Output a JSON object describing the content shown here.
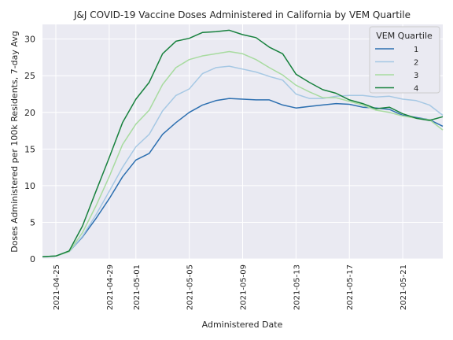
{
  "chart_data": {
    "type": "line",
    "title": "J&J COVID-19 Vaccine Doses Administered in California by VEM Quartile",
    "xlabel": "Administered Date",
    "ylabel": "Doses Administered per 100k Residents, 7-day Avg",
    "x_start": "2021-04-24",
    "x_end": "2021-05-24",
    "xlim": [
      "2021-04-24",
      "2021-05-24"
    ],
    "ylim": [
      0,
      32
    ],
    "x_ticks": [
      "2021-04-25",
      "2021-04-29",
      "2021-05-01",
      "2021-05-05",
      "2021-05-09",
      "2021-05-13",
      "2021-05-17",
      "2021-05-21"
    ],
    "y_ticks": [
      0,
      5,
      10,
      15,
      20,
      25,
      30
    ],
    "grid": true,
    "legend_title": "VEM Quartile",
    "legend_position": "top-right",
    "series": [
      {
        "name": "1",
        "color": "#2c6fb0",
        "x": [
          "2021-04-24",
          "2021-04-25",
          "2021-04-26",
          "2021-04-27",
          "2021-04-28",
          "2021-04-29",
          "2021-04-30",
          "2021-05-01",
          "2021-05-02",
          "2021-05-03",
          "2021-05-04",
          "2021-05-05",
          "2021-05-06",
          "2021-05-07",
          "2021-05-08",
          "2021-05-09",
          "2021-05-10",
          "2021-05-11",
          "2021-05-12",
          "2021-05-13",
          "2021-05-14",
          "2021-05-15",
          "2021-05-16",
          "2021-05-17",
          "2021-05-18",
          "2021-05-19",
          "2021-05-20",
          "2021-05-21",
          "2021-05-22",
          "2021-05-23",
          "2021-05-24"
        ],
        "values": [
          0.3,
          0.4,
          1.0,
          3.0,
          5.5,
          8.2,
          11.2,
          13.5,
          14.4,
          17.0,
          18.6,
          20.0,
          21.0,
          21.6,
          21.9,
          21.8,
          21.7,
          21.7,
          21.0,
          20.6,
          20.8,
          21.0,
          21.2,
          21.1,
          20.7,
          20.6,
          20.4,
          19.6,
          19.3,
          19.0,
          18.1
        ]
      },
      {
        "name": "2",
        "color": "#a6c8e4",
        "x": [
          "2021-04-24",
          "2021-04-25",
          "2021-04-26",
          "2021-04-27",
          "2021-04-28",
          "2021-04-29",
          "2021-04-30",
          "2021-05-01",
          "2021-05-02",
          "2021-05-03",
          "2021-05-04",
          "2021-05-05",
          "2021-05-06",
          "2021-05-07",
          "2021-05-08",
          "2021-05-09",
          "2021-05-10",
          "2021-05-11",
          "2021-05-12",
          "2021-05-13",
          "2021-05-14",
          "2021-05-15",
          "2021-05-16",
          "2021-05-17",
          "2021-05-18",
          "2021-05-19",
          "2021-05-20",
          "2021-05-21",
          "2021-05-22",
          "2021-05-23",
          "2021-05-24"
        ],
        "values": [
          0.3,
          0.4,
          1.0,
          3.1,
          6.0,
          9.2,
          12.5,
          15.3,
          17.0,
          20.2,
          22.3,
          23.2,
          25.3,
          26.1,
          26.3,
          25.9,
          25.5,
          24.9,
          24.4,
          22.5,
          21.9,
          21.9,
          22.2,
          22.3,
          22.3,
          22.1,
          22.2,
          21.8,
          21.6,
          21.0,
          19.6
        ]
      },
      {
        "name": "3",
        "color": "#a8dba0",
        "x": [
          "2021-04-24",
          "2021-04-25",
          "2021-04-26",
          "2021-04-27",
          "2021-04-28",
          "2021-04-29",
          "2021-04-30",
          "2021-05-01",
          "2021-05-02",
          "2021-05-03",
          "2021-05-04",
          "2021-05-05",
          "2021-05-06",
          "2021-05-07",
          "2021-05-08",
          "2021-05-09",
          "2021-05-10",
          "2021-05-11",
          "2021-05-12",
          "2021-05-13",
          "2021-05-14",
          "2021-05-15",
          "2021-05-16",
          "2021-05-17",
          "2021-05-18",
          "2021-05-19",
          "2021-05-20",
          "2021-05-21",
          "2021-05-22",
          "2021-05-23",
          "2021-05-24"
        ],
        "values": [
          0.3,
          0.4,
          1.0,
          3.6,
          7.2,
          11.2,
          15.6,
          18.4,
          20.3,
          23.8,
          26.1,
          27.2,
          27.7,
          28.0,
          28.3,
          28.0,
          27.2,
          26.1,
          25.1,
          23.7,
          22.8,
          22.0,
          22.0,
          21.5,
          21.0,
          20.3,
          20.0,
          19.5,
          19.2,
          19.0,
          17.6
        ]
      },
      {
        "name": "4",
        "color": "#17813d",
        "x": [
          "2021-04-24",
          "2021-04-25",
          "2021-04-26",
          "2021-04-27",
          "2021-04-28",
          "2021-04-29",
          "2021-04-30",
          "2021-05-01",
          "2021-05-02",
          "2021-05-03",
          "2021-05-04",
          "2021-05-05",
          "2021-05-06",
          "2021-05-07",
          "2021-05-08",
          "2021-05-09",
          "2021-05-10",
          "2021-05-11",
          "2021-05-12",
          "2021-05-13",
          "2021-05-14",
          "2021-05-15",
          "2021-05-16",
          "2021-05-17",
          "2021-05-18",
          "2021-05-19",
          "2021-05-20",
          "2021-05-21",
          "2021-05-22",
          "2021-05-23",
          "2021-05-24"
        ],
        "values": [
          0.3,
          0.4,
          1.1,
          4.5,
          9.2,
          13.8,
          18.6,
          21.8,
          24.1,
          28.0,
          29.7,
          30.1,
          30.9,
          31.0,
          31.2,
          30.6,
          30.2,
          28.9,
          28.0,
          25.2,
          24.1,
          23.1,
          22.6,
          21.7,
          21.2,
          20.5,
          20.7,
          19.8,
          19.2,
          18.9,
          19.4
        ]
      }
    ]
  }
}
